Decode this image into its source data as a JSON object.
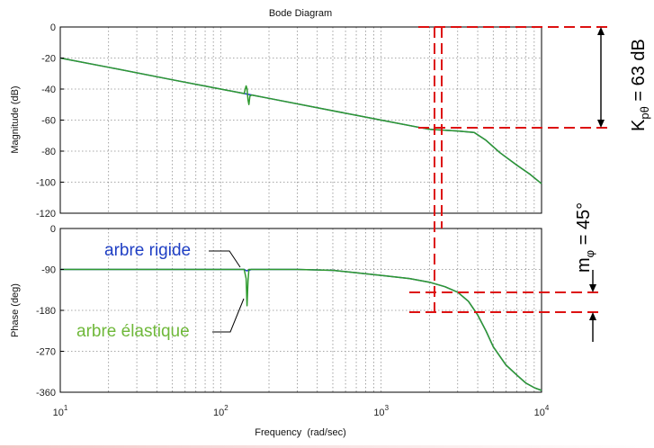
{
  "chart_data": [
    {
      "type": "line",
      "title": "Bode Diagram",
      "xlabel": "",
      "ylabel": "Magnitude (dB)",
      "xscale": "log",
      "xlim": [
        10,
        10000
      ],
      "ylim": [
        -120,
        0
      ],
      "yticks": [
        0,
        -20,
        -40,
        -60,
        -80,
        -100,
        -120
      ],
      "xtick_labels": [],
      "grid": true,
      "series": [
        {
          "name": "arbre rigide",
          "color": "#1f3fc4",
          "x": [
            10,
            20,
            50,
            100,
            150,
            200,
            500,
            1000,
            2000,
            3000,
            3800,
            4500,
            5500,
            7000,
            8500,
            10000
          ],
          "y": [
            -20,
            -26,
            -34,
            -40,
            -43.5,
            -46,
            -54,
            -60,
            -66,
            -67,
            -68,
            -73,
            -81,
            -89,
            -95,
            -101
          ]
        },
        {
          "name": "arbre élastique",
          "color": "#2f9a2f",
          "x": [
            10,
            20,
            50,
            100,
            140,
            144,
            146,
            148,
            150,
            152,
            156,
            200,
            500,
            1000,
            2000,
            3000,
            3800,
            4500,
            5500,
            7000,
            8500,
            10000
          ],
          "y": [
            -20,
            -26,
            -34,
            -40,
            -42.9,
            -38,
            -40,
            -47,
            -50,
            -44.5,
            -43.8,
            -46,
            -54,
            -60,
            -66,
            -67,
            -68,
            -73,
            -81,
            -89,
            -95,
            -101
          ]
        }
      ],
      "annotations": [
        {
          "text": "K",
          "sub": "pθ",
          "suffix": " = 63 dB",
          "color": "#000000"
        }
      ]
    },
    {
      "type": "line",
      "title": "",
      "xlabel": "Frequency  (rad/sec)",
      "ylabel": "Phase (deg)",
      "xscale": "log",
      "xlim": [
        10,
        10000
      ],
      "ylim": [
        -360,
        0
      ],
      "yticks": [
        0,
        -90,
        -180,
        -270,
        -360
      ],
      "xtick_labels": [
        {
          "base": "10",
          "exp": "1",
          "value": 10
        },
        {
          "base": "10",
          "exp": "2",
          "value": 100
        },
        {
          "base": "10",
          "exp": "3",
          "value": 1000
        },
        {
          "base": "10",
          "exp": "4",
          "value": 10000
        }
      ],
      "grid": true,
      "series": [
        {
          "name": "arbre rigide",
          "color": "#1f3fc4",
          "x": [
            10,
            100,
            140,
            145,
            150,
            155,
            300,
            500,
            1000,
            1500,
            2000,
            2500,
            3000,
            3500,
            4000,
            4500,
            5000,
            6000,
            7000,
            8000,
            9000,
            10000
          ],
          "y": [
            -90,
            -90,
            -90,
            -93,
            -92,
            -90,
            -90,
            -92,
            -103,
            -110,
            -118,
            -128,
            -140,
            -160,
            -190,
            -225,
            -260,
            -300,
            -322,
            -340,
            -350,
            -356
          ]
        },
        {
          "name": "arbre élastique",
          "color": "#2f9a2f",
          "x": [
            10,
            100,
            140,
            144,
            146,
            148,
            150,
            300,
            500,
            1000,
            1500,
            2000,
            2500,
            3000,
            3500,
            4000,
            4500,
            5000,
            6000,
            7000,
            8000,
            9000,
            10000
          ],
          "y": [
            -90,
            -90,
            -90,
            -110,
            -170,
            -115,
            -90,
            -90,
            -92,
            -103,
            -110,
            -118,
            -128,
            -140,
            -160,
            -190,
            -225,
            -260,
            -300,
            -322,
            -340,
            -350,
            -356
          ]
        }
      ],
      "legend_labels": [
        {
          "text": "arbre rigide",
          "color": "#1f3fc4"
        },
        {
          "text": "arbre élastique",
          "color": "#6fb83a"
        }
      ],
      "annotations": [
        {
          "text": "m",
          "sub": "φ",
          "suffix": " = 45°",
          "color": "#000000"
        }
      ]
    }
  ],
  "colors": {
    "dashed_guides": "#dd1111",
    "grid": "#8c8c8c",
    "frame": "#000000"
  }
}
